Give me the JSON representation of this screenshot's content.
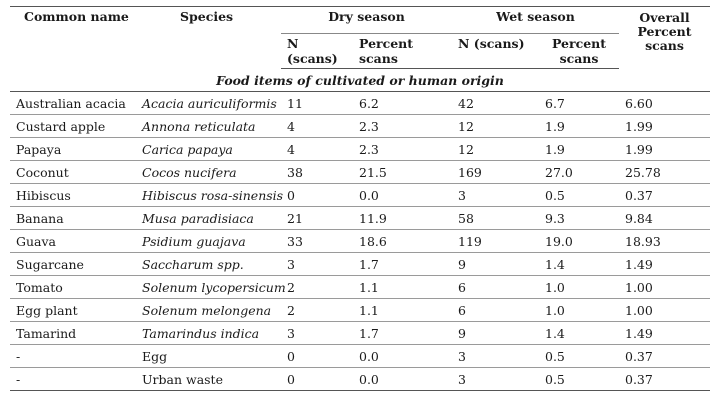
{
  "headers": {
    "common_name": "Common name",
    "species": "Species",
    "dry_season": "Dry season",
    "wet_season": "Wet season",
    "overall": "Overall Percent scans",
    "n_scans": "N (scans)",
    "percent_scans": "Percent scans"
  },
  "section_title": "Food items of cultivated or human origin",
  "rows": [
    {
      "common": "Australian acacia",
      "species": "Acacia auriculiformis",
      "dry_n": "11",
      "dry_pct": "6.2",
      "wet_n": "42",
      "wet_pct": "6.7",
      "overall": "6.60"
    },
    {
      "common": "Custard apple",
      "species": "Annona reticulata",
      "dry_n": "4",
      "dry_pct": "2.3",
      "wet_n": "12",
      "wet_pct": "1.9",
      "overall": "1.99"
    },
    {
      "common": "Papaya",
      "species": "Carica papaya",
      "dry_n": "4",
      "dry_pct": "2.3",
      "wet_n": "12",
      "wet_pct": "1.9",
      "overall": "1.99"
    },
    {
      "common": "Coconut",
      "species": "Cocos nucifera",
      "dry_n": "38",
      "dry_pct": "21.5",
      "wet_n": "169",
      "wet_pct": "27.0",
      "overall": "25.78"
    },
    {
      "common": "Hibiscus",
      "species": "Hibiscus rosa-sinensis",
      "dry_n": "0",
      "dry_pct": "0.0",
      "wet_n": "3",
      "wet_pct": "0.5",
      "overall": "0.37"
    },
    {
      "common": "Banana",
      "species": "Musa paradisiaca",
      "dry_n": "21",
      "dry_pct": "11.9",
      "wet_n": "58",
      "wet_pct": "9.3",
      "overall": "9.84"
    },
    {
      "common": "Guava",
      "species": "Psidium guajava",
      "dry_n": "33",
      "dry_pct": "18.6",
      "wet_n": "119",
      "wet_pct": "19.0",
      "overall": "18.93"
    },
    {
      "common": "Sugarcane",
      "species": "Saccharum spp.",
      "dry_n": "3",
      "dry_pct": "1.7",
      "wet_n": "9",
      "wet_pct": "1.4",
      "overall": "1.49"
    },
    {
      "common": "Tomato",
      "species": "Solenum lycopersicum",
      "dry_n": "2",
      "dry_pct": "1.1",
      "wet_n": "6",
      "wet_pct": "1.0",
      "overall": "1.00"
    },
    {
      "common": "Egg plant",
      "species": "Solenum melongena",
      "dry_n": "2",
      "dry_pct": "1.1",
      "wet_n": "6",
      "wet_pct": "1.0",
      "overall": "1.00"
    },
    {
      "common": "Tamarind",
      "species": "Tamarindus indica",
      "dry_n": "3",
      "dry_pct": "1.7",
      "wet_n": "9",
      "wet_pct": "1.4",
      "overall": "1.49"
    },
    {
      "common": "-",
      "species": "Egg",
      "dry_n": "0",
      "dry_pct": "0.0",
      "wet_n": "3",
      "wet_pct": "0.5",
      "overall": "0.37",
      "species_plain": true
    },
    {
      "common": "-",
      "species": "Urban waste",
      "dry_n": "0",
      "dry_pct": "0.0",
      "wet_n": "3",
      "wet_pct": "0.5",
      "overall": "0.37",
      "species_plain": true
    }
  ]
}
